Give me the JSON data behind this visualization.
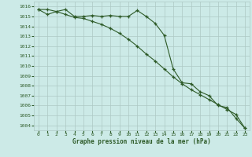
{
  "xlabel": "Graphe pression niveau de la mer (hPa)",
  "xlim": [
    -0.5,
    23.5
  ],
  "ylim": [
    1003.5,
    1016.5
  ],
  "yticks": [
    1004,
    1005,
    1006,
    1007,
    1008,
    1009,
    1010,
    1011,
    1012,
    1013,
    1014,
    1015,
    1016
  ],
  "xticks": [
    0,
    1,
    2,
    3,
    4,
    5,
    6,
    7,
    8,
    9,
    10,
    11,
    12,
    13,
    14,
    15,
    16,
    17,
    18,
    19,
    20,
    21,
    22,
    23
  ],
  "bg_color": "#cceae7",
  "grid_color": "#adc8c4",
  "line_color": "#2d5a27",
  "line1_x": [
    0,
    1,
    2,
    3,
    4,
    5,
    6,
    7,
    8,
    9,
    10,
    11,
    12,
    13,
    14,
    15,
    16,
    17,
    18,
    19,
    20,
    21,
    22,
    23
  ],
  "line1_y": [
    1015.7,
    1015.7,
    1015.5,
    1015.7,
    1015.0,
    1015.0,
    1015.1,
    1015.0,
    1015.1,
    1015.0,
    1015.0,
    1015.6,
    1015.0,
    1014.3,
    1013.1,
    1009.7,
    1008.3,
    1008.2,
    1007.4,
    1007.0,
    1006.0,
    1005.8,
    1004.7,
    1003.7
  ],
  "line2_x": [
    0,
    1,
    2,
    3,
    4,
    5,
    6,
    7,
    8,
    9,
    10,
    11,
    12,
    13,
    14,
    15,
    16,
    17,
    18,
    19,
    20,
    21,
    22,
    23
  ],
  "line2_y": [
    1015.7,
    1015.2,
    1015.5,
    1015.2,
    1014.9,
    1014.8,
    1014.5,
    1014.2,
    1013.8,
    1013.3,
    1012.7,
    1012.0,
    1011.2,
    1010.5,
    1009.7,
    1008.9,
    1008.2,
    1007.6,
    1007.1,
    1006.6,
    1006.1,
    1005.6,
    1005.1,
    1003.7
  ],
  "tick_fontsize": 4.5,
  "label_fontsize": 5.5,
  "line_width": 0.8,
  "marker_size": 3.5
}
